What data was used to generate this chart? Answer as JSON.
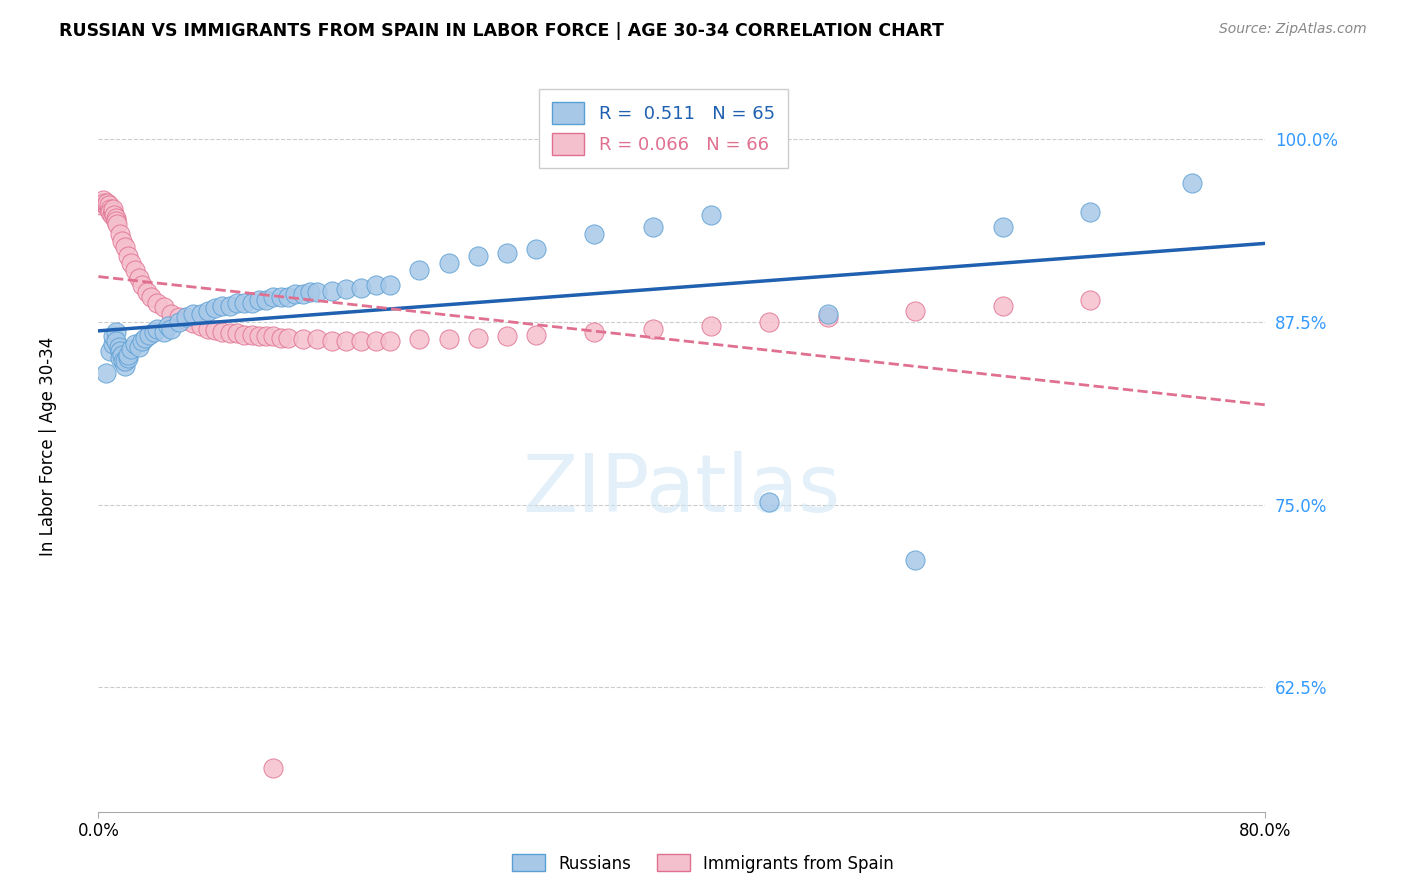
{
  "title": "RUSSIAN VS IMMIGRANTS FROM SPAIN IN LABOR FORCE | AGE 30-34 CORRELATION CHART",
  "source_text": "Source: ZipAtlas.com",
  "ylabel": "In Labor Force | Age 30-34",
  "xlim": [
    0.0,
    0.8
  ],
  "ylim": [
    0.54,
    1.04
  ],
  "xticks": [
    0.0,
    0.8
  ],
  "xticklabels": [
    "0.0%",
    "80.0%"
  ],
  "ytick_positions": [
    0.625,
    0.75,
    0.875,
    1.0
  ],
  "yticklabels": [
    "62.5%",
    "75.0%",
    "87.5%",
    "100.0%"
  ],
  "r_russian": 0.511,
  "n_russian": 65,
  "r_spain": 0.066,
  "n_spain": 66,
  "legend_label_russian": "Russians",
  "legend_label_spain": "Immigrants from Spain",
  "blue_color": "#a8c8e8",
  "blue_edge_color": "#5a9fd4",
  "pink_color": "#f5c0ce",
  "pink_edge_color": "#e07090",
  "blue_line_color": "#2060b0",
  "pink_line_color": "#e07090",
  "russians_x": [
    0.005,
    0.008,
    0.01,
    0.01,
    0.012,
    0.012,
    0.014,
    0.015,
    0.015,
    0.016,
    0.017,
    0.018,
    0.018,
    0.02,
    0.02,
    0.022,
    0.025,
    0.028,
    0.03,
    0.032,
    0.035,
    0.038,
    0.04,
    0.045,
    0.048,
    0.05,
    0.055,
    0.06,
    0.065,
    0.07,
    0.075,
    0.08,
    0.085,
    0.09,
    0.095,
    0.1,
    0.105,
    0.11,
    0.115,
    0.12,
    0.125,
    0.13,
    0.135,
    0.14,
    0.145,
    0.15,
    0.16,
    0.17,
    0.18,
    0.19,
    0.2,
    0.22,
    0.24,
    0.26,
    0.28,
    0.3,
    0.34,
    0.38,
    0.42,
    0.46,
    0.5,
    0.56,
    0.62,
    0.68,
    0.75
  ],
  "russians_y": [
    0.84,
    0.855,
    0.86,
    0.865,
    0.868,
    0.862,
    0.858,
    0.855,
    0.85,
    0.852,
    0.848,
    0.845,
    0.848,
    0.85,
    0.852,
    0.856,
    0.86,
    0.858,
    0.862,
    0.864,
    0.866,
    0.868,
    0.87,
    0.868,
    0.872,
    0.87,
    0.875,
    0.878,
    0.88,
    0.88,
    0.882,
    0.884,
    0.886,
    0.886,
    0.888,
    0.888,
    0.888,
    0.89,
    0.89,
    0.892,
    0.892,
    0.892,
    0.894,
    0.894,
    0.895,
    0.895,
    0.896,
    0.897,
    0.898,
    0.9,
    0.9,
    0.91,
    0.915,
    0.92,
    0.922,
    0.925,
    0.935,
    0.94,
    0.948,
    0.752,
    0.88,
    0.712,
    0.94,
    0.95,
    0.97
  ],
  "spain_x": [
    0.002,
    0.003,
    0.004,
    0.005,
    0.006,
    0.006,
    0.007,
    0.008,
    0.008,
    0.009,
    0.01,
    0.01,
    0.011,
    0.012,
    0.012,
    0.013,
    0.015,
    0.016,
    0.018,
    0.02,
    0.022,
    0.025,
    0.028,
    0.03,
    0.033,
    0.036,
    0.04,
    0.045,
    0.05,
    0.055,
    0.06,
    0.065,
    0.07,
    0.075,
    0.08,
    0.085,
    0.09,
    0.095,
    0.1,
    0.105,
    0.11,
    0.115,
    0.12,
    0.125,
    0.13,
    0.14,
    0.15,
    0.16,
    0.17,
    0.18,
    0.19,
    0.2,
    0.22,
    0.24,
    0.26,
    0.28,
    0.3,
    0.34,
    0.38,
    0.42,
    0.46,
    0.5,
    0.56,
    0.62,
    0.68,
    0.12
  ],
  "spain_y": [
    0.955,
    0.958,
    0.956,
    0.955,
    0.954,
    0.956,
    0.955,
    0.952,
    0.95,
    0.948,
    0.95,
    0.952,
    0.948,
    0.946,
    0.944,
    0.942,
    0.935,
    0.93,
    0.926,
    0.92,
    0.915,
    0.91,
    0.905,
    0.9,
    0.895,
    0.892,
    0.888,
    0.885,
    0.88,
    0.878,
    0.876,
    0.874,
    0.872,
    0.87,
    0.869,
    0.868,
    0.867,
    0.867,
    0.866,
    0.866,
    0.865,
    0.865,
    0.865,
    0.864,
    0.864,
    0.863,
    0.863,
    0.862,
    0.862,
    0.862,
    0.862,
    0.862,
    0.863,
    0.863,
    0.864,
    0.865,
    0.866,
    0.868,
    0.87,
    0.872,
    0.875,
    0.878,
    0.882,
    0.886,
    0.89,
    0.57
  ]
}
